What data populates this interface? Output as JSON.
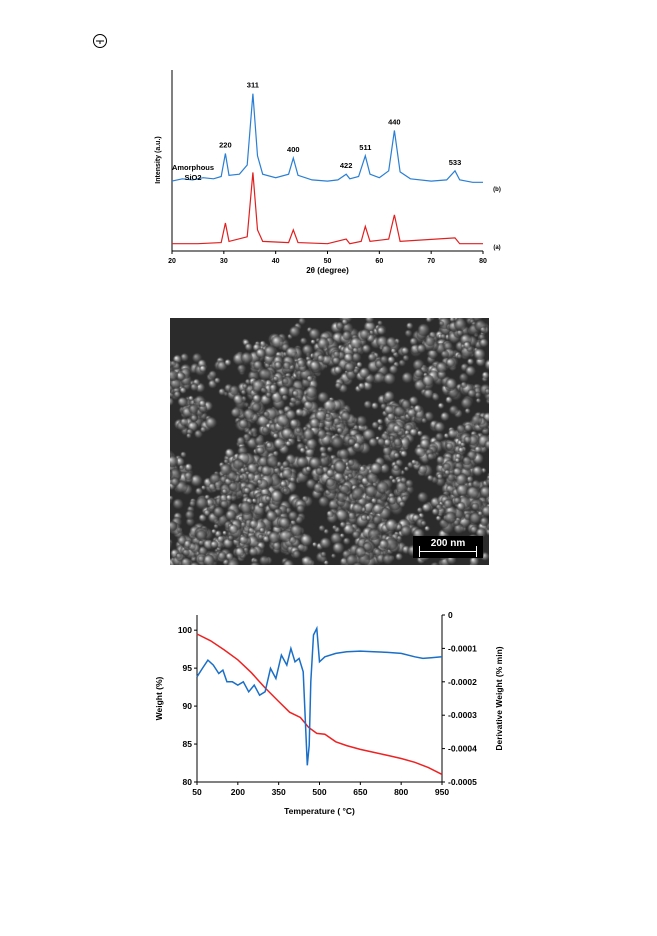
{
  "chart_data": [
    {
      "type": "line",
      "ylabel": "Intensity (a.u.)",
      "xlabel": "2θ (degree)",
      "xlim": [
        20,
        80
      ],
      "x_ticks": [
        "20",
        "30",
        "40",
        "50",
        "60",
        "70",
        "80"
      ],
      "grid": false,
      "series": [
        {
          "name": "(b)",
          "color": "#2a7fd4",
          "points": [
            [
              20,
              0.06
            ],
            [
              22,
              0.08
            ],
            [
              24,
              0.07
            ],
            [
              26,
              0.09
            ],
            [
              28,
              0.08
            ],
            [
              29.5,
              0.1
            ],
            [
              30.3,
              0.3
            ],
            [
              31,
              0.11
            ],
            [
              33,
              0.12
            ],
            [
              34.5,
              0.2
            ],
            [
              35.6,
              0.82
            ],
            [
              36.5,
              0.28
            ],
            [
              37.5,
              0.12
            ],
            [
              40,
              0.09
            ],
            [
              42.5,
              0.12
            ],
            [
              43.4,
              0.26
            ],
            [
              44.3,
              0.11
            ],
            [
              47,
              0.07
            ],
            [
              50,
              0.06
            ],
            [
              52,
              0.07
            ],
            [
              53.6,
              0.12
            ],
            [
              54.3,
              0.08
            ],
            [
              56,
              0.1
            ],
            [
              57.3,
              0.28
            ],
            [
              58.2,
              0.12
            ],
            [
              60,
              0.09
            ],
            [
              61.8,
              0.15
            ],
            [
              62.9,
              0.5
            ],
            [
              64,
              0.14
            ],
            [
              66,
              0.08
            ],
            [
              70,
              0.06
            ],
            [
              73,
              0.07
            ],
            [
              74.6,
              0.15
            ],
            [
              75.5,
              0.07
            ],
            [
              78,
              0.05
            ],
            [
              80,
              0.05
            ]
          ]
        },
        {
          "name": "(a)",
          "color": "#e02020",
          "points": [
            [
              20,
              0.02
            ],
            [
              25,
              0.02
            ],
            [
              29.5,
              0.03
            ],
            [
              30.3,
              0.2
            ],
            [
              31,
              0.04
            ],
            [
              34.5,
              0.08
            ],
            [
              35.6,
              0.64
            ],
            [
              36.5,
              0.14
            ],
            [
              37.5,
              0.04
            ],
            [
              42.5,
              0.03
            ],
            [
              43.4,
              0.14
            ],
            [
              44.3,
              0.03
            ],
            [
              50,
              0.02
            ],
            [
              53.6,
              0.06
            ],
            [
              54.3,
              0.02
            ],
            [
              56.5,
              0.04
            ],
            [
              57.3,
              0.17
            ],
            [
              58.2,
              0.04
            ],
            [
              61.8,
              0.06
            ],
            [
              62.9,
              0.27
            ],
            [
              64,
              0.04
            ],
            [
              74.6,
              0.07
            ],
            [
              75.5,
              0.02
            ],
            [
              80,
              0.02
            ]
          ]
        }
      ],
      "peak_labels": [
        {
          "text": "220",
          "x": 30.3,
          "y": 0.3
        },
        {
          "text": "311",
          "x": 35.6,
          "y": 0.82
        },
        {
          "text": "400",
          "x": 43.4,
          "y": 0.26
        },
        {
          "text": "422",
          "x": 53.6,
          "y": 0.12
        },
        {
          "text": "511",
          "x": 57.3,
          "y": 0.28
        },
        {
          "text": "440",
          "x": 62.9,
          "y": 0.5
        },
        {
          "text": "533",
          "x": 74.6,
          "y": 0.15
        }
      ],
      "annotation_lines": [
        "Amorphous",
        "SiO2"
      ],
      "series_labels": [
        "(b)",
        "(a)"
      ]
    },
    {
      "type": "line",
      "xlabel": "Temperature ( °C)",
      "ylabel": "Weight (%)",
      "y2label": "Derivative Weight (% min)",
      "xlim": [
        50,
        950
      ],
      "ylim": [
        80,
        102
      ],
      "y2lim": [
        -0.0005,
        0
      ],
      "x_ticks": [
        "50",
        "200",
        "350",
        "500",
        "650",
        "800",
        "950"
      ],
      "y_ticks": [
        "80",
        "85",
        "90",
        "95",
        "100"
      ],
      "y2_ticks": [
        "-0.0005",
        "-0.0004",
        "-0.0003",
        "-0.0002",
        "-0.0001",
        "0"
      ],
      "grid": false,
      "series": [
        {
          "name": "Weight",
          "color": "#ee2222",
          "points": [
            [
              50,
              99.5
            ],
            [
              100,
              98.6
            ],
            [
              150,
              97.4
            ],
            [
              200,
              96.1
            ],
            [
              250,
              94.4
            ],
            [
              300,
              92.4
            ],
            [
              350,
              90.6
            ],
            [
              390,
              89.2
            ],
            [
              430,
              88.5
            ],
            [
              460,
              87.2
            ],
            [
              490,
              86.4
            ],
            [
              520,
              86.3
            ],
            [
              560,
              85.3
            ],
            [
              600,
              84.8
            ],
            [
              650,
              84.3
            ],
            [
              700,
              83.9
            ],
            [
              750,
              83.5
            ],
            [
              800,
              83.1
            ],
            [
              850,
              82.6
            ],
            [
              900,
              81.9
            ],
            [
              950,
              81.0
            ]
          ]
        },
        {
          "name": "Derivative",
          "color": "#1a6fc8",
          "axis": "right",
          "points": [
            [
              50,
              -0.000185
            ],
            [
              70,
              -0.00016
            ],
            [
              90,
              -0.000135
            ],
            [
              110,
              -0.00015
            ],
            [
              130,
              -0.000175
            ],
            [
              145,
              -0.000165
            ],
            [
              160,
              -0.0002
            ],
            [
              180,
              -0.0002
            ],
            [
              200,
              -0.00021
            ],
            [
              220,
              -0.0002
            ],
            [
              240,
              -0.00023
            ],
            [
              260,
              -0.00021
            ],
            [
              280,
              -0.00024
            ],
            [
              300,
              -0.00023
            ],
            [
              320,
              -0.00016
            ],
            [
              340,
              -0.00019
            ],
            [
              360,
              -0.00012
            ],
            [
              380,
              -0.00015
            ],
            [
              395,
              -0.0001
            ],
            [
              410,
              -0.00014
            ],
            [
              425,
              -0.00013
            ],
            [
              440,
              -0.00017
            ],
            [
              455,
              -0.00045
            ],
            [
              462,
              -0.00039
            ],
            [
              468,
              -0.0002
            ],
            [
              478,
              -6e-05
            ],
            [
              490,
              -4e-05
            ],
            [
              500,
              -0.00014
            ],
            [
              520,
              -0.000125
            ],
            [
              560,
              -0.000115
            ],
            [
              600,
              -0.00011
            ],
            [
              650,
              -0.000108
            ],
            [
              700,
              -0.00011
            ],
            [
              750,
              -0.000112
            ],
            [
              800,
              -0.000115
            ],
            [
              850,
              -0.000125
            ],
            [
              880,
              -0.00013
            ],
            [
              910,
              -0.000128
            ],
            [
              950,
              -0.000125
            ]
          ]
        }
      ]
    }
  ],
  "sem_image": {
    "scale_bar_label": "200 nm"
  }
}
